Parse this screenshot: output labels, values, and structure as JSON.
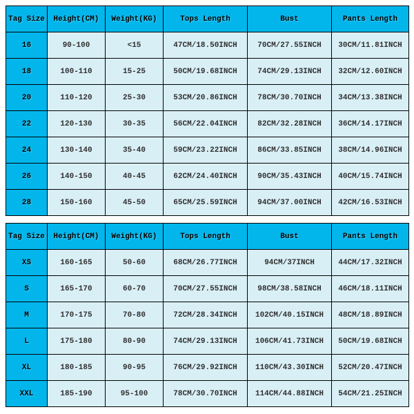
{
  "colors": {
    "header_bg": "#02b6ec",
    "cell_bg": "#d9eff6",
    "border": "#000000",
    "text": "#303030"
  },
  "table1": {
    "columns": [
      "Tag Size",
      "Height(CM)",
      "Weight(KG)",
      "Tops Length",
      "Bust",
      "Pants Length"
    ],
    "rows": [
      [
        "16",
        "90-100",
        "<15",
        "47CM/18.50INCH",
        "70CM/27.55INCH",
        "30CM/11.81INCH"
      ],
      [
        "18",
        "100-110",
        "15-25",
        "50CM/19.68INCH",
        "74CM/29.13INCH",
        "32CM/12.60INCH"
      ],
      [
        "20",
        "110-120",
        "25-30",
        "53CM/20.86INCH",
        "78CM/30.70INCH",
        "34CM/13.38INCH"
      ],
      [
        "22",
        "120-130",
        "30-35",
        "56CM/22.04INCH",
        "82CM/32.28INCH",
        "36CM/14.17INCH"
      ],
      [
        "24",
        "130-140",
        "35-40",
        "59CM/23.22INCH",
        "86CM/33.85INCH",
        "38CM/14.96INCH"
      ],
      [
        "26",
        "140-150",
        "40-45",
        "62CM/24.40INCH",
        "90CM/35.43INCH",
        "40CM/15.74INCH"
      ],
      [
        "28",
        "150-160",
        "45-50",
        "65CM/25.59INCH",
        "94CM/37.00INCH",
        "42CM/16.53INCH"
      ]
    ]
  },
  "table2": {
    "columns": [
      "Tag Size",
      "Height(CM)",
      "Weight(KG)",
      "Tops Length",
      "Bust",
      "Pants Length"
    ],
    "rows": [
      [
        "XS",
        "160-165",
        "50-60",
        "68CM/26.77INCH",
        "94CM/37INCH",
        "44CM/17.32INCH"
      ],
      [
        "S",
        "165-170",
        "60-70",
        "70CM/27.55INCH",
        "98CM/38.58INCH",
        "46CM/18.11INCH"
      ],
      [
        "M",
        "170-175",
        "70-80",
        "72CM/28.34INCH",
        "102CM/40.15INCH",
        "48CM/18.89INCH"
      ],
      [
        "L",
        "175-180",
        "80-90",
        "74CM/29.13INCH",
        "106CM/41.73INCH",
        "50CM/19.68INCH"
      ],
      [
        "XL",
        "180-185",
        "90-95",
        "76CM/29.92INCH",
        "110CM/43.30INCH",
        "52CM/20.47INCH"
      ],
      [
        "XXL",
        "185-190",
        "95-100",
        "78CM/30.70INCH",
        "114CM/44.88INCH",
        "54CM/21.25INCH"
      ]
    ]
  }
}
